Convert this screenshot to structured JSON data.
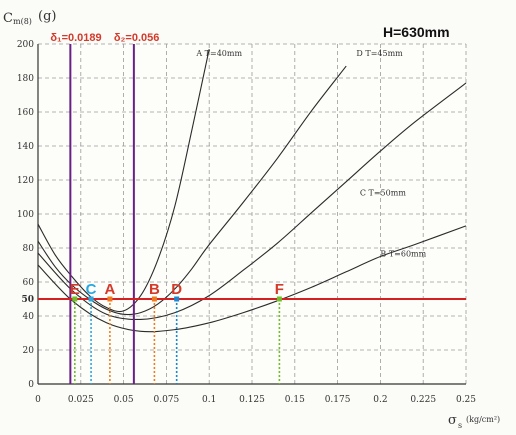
{
  "chart_data": {
    "type": "line",
    "title": "H=630mm",
    "ylabel_symbol": "C",
    "ylabel_sub": "m(8)",
    "ylabel_unit": "(g)",
    "xlabel_symbol": "σ",
    "xlabel_sub": "s",
    "xlabel_unit": "(kg/cm²)",
    "xlim": [
      0,
      0.25
    ],
    "ylim": [
      0,
      200
    ],
    "grid": true,
    "x_ticks": [
      {
        "v": 0,
        "label": "0"
      },
      {
        "v": 0.025,
        "label": "0.025"
      },
      {
        "v": 0.05,
        "label": "0.05"
      },
      {
        "v": 0.075,
        "label": "0.075"
      },
      {
        "v": 0.1,
        "label": "0.1"
      },
      {
        "v": 0.125,
        "label": "0.125"
      },
      {
        "v": 0.15,
        "label": "0.15"
      },
      {
        "v": 0.175,
        "label": "0.175"
      },
      {
        "v": 0.2,
        "label": "0.2"
      },
      {
        "v": 0.225,
        "label": "0.225"
      },
      {
        "v": 0.25,
        "label": "0.25"
      }
    ],
    "y_ticks": [
      {
        "v": 0,
        "label": "0"
      },
      {
        "v": 20,
        "label": "20"
      },
      {
        "v": 40,
        "label": "40"
      },
      {
        "v": 50,
        "label": "50"
      },
      {
        "v": 60,
        "label": "60"
      },
      {
        "v": 80,
        "label": "80"
      },
      {
        "v": 100,
        "label": "100"
      },
      {
        "v": 120,
        "label": "120"
      },
      {
        "v": 140,
        "label": "140"
      },
      {
        "v": 160,
        "label": "160"
      },
      {
        "v": 180,
        "label": "180"
      },
      {
        "v": 200,
        "label": "200"
      }
    ],
    "series": [
      {
        "name": "A  T=40mm",
        "label_at": [
          0.0925,
          193
        ],
        "color": "#2b2b2b",
        "x": [
          0.0,
          0.01,
          0.02,
          0.03,
          0.04,
          0.05,
          0.06,
          0.07,
          0.08,
          0.09,
          0.1
        ],
        "y": [
          94,
          76,
          63,
          52,
          45,
          43,
          52,
          73,
          105,
          150,
          197
        ]
      },
      {
        "name": "D  T=45mm",
        "label_at": [
          0.186,
          193
        ],
        "color": "#2b2b2b",
        "x": [
          0.0,
          0.01,
          0.02,
          0.03,
          0.04,
          0.05,
          0.06,
          0.07,
          0.08,
          0.09,
          0.1,
          0.12,
          0.14,
          0.16,
          0.18
        ],
        "y": [
          84,
          69,
          58,
          50,
          44,
          41,
          42,
          47,
          56,
          68,
          82,
          107,
          133,
          161,
          187
        ]
      },
      {
        "name": "C  T=50mm",
        "label_at": [
          0.188,
          111
        ],
        "color": "#2b2b2b",
        "x": [
          0.0,
          0.02,
          0.04,
          0.06,
          0.08,
          0.1,
          0.12,
          0.14,
          0.16,
          0.18,
          0.2,
          0.22,
          0.25
        ],
        "y": [
          77,
          55,
          41,
          38,
          42,
          52,
          67,
          83,
          101,
          119,
          137,
          154,
          177
        ]
      },
      {
        "name": "B  T=60mm",
        "label_at": [
          0.2,
          75
        ],
        "color": "#2b2b2b",
        "x": [
          0.0,
          0.02,
          0.04,
          0.06,
          0.08,
          0.1,
          0.12,
          0.14,
          0.16,
          0.18,
          0.2,
          0.22,
          0.25
        ],
        "y": [
          70,
          49,
          36,
          31,
          32,
          36,
          42,
          49,
          57,
          66,
          75,
          82,
          93
        ]
      }
    ],
    "reference_line": {
      "y": 50,
      "color": "#d42020"
    },
    "vertical_lines": [
      {
        "label": "δ₁=0.0189",
        "x": 0.0189,
        "color": "#6a1f86"
      },
      {
        "label": "δ₂=0.056",
        "x": 0.056,
        "color": "#6a1f86"
      }
    ],
    "points": [
      {
        "label": "E",
        "x": 0.0215,
        "color": "#6fbf2a",
        "text_color": "#d43a2a"
      },
      {
        "label": "C",
        "x": 0.031,
        "color": "#2aa8e0",
        "text_color": "#2aa8e0"
      },
      {
        "label": "A",
        "x": 0.042,
        "color": "#f07b1e",
        "text_color": "#d43a2a"
      },
      {
        "label": "B",
        "x": 0.068,
        "color": "#f07b1e",
        "text_color": "#d43a2a"
      },
      {
        "label": "D",
        "x": 0.081,
        "color": "#1d86d2",
        "text_color": "#d43a2a"
      },
      {
        "label": "F",
        "x": 0.141,
        "color": "#6fbf2a",
        "text_color": "#d43a2a"
      }
    ]
  }
}
